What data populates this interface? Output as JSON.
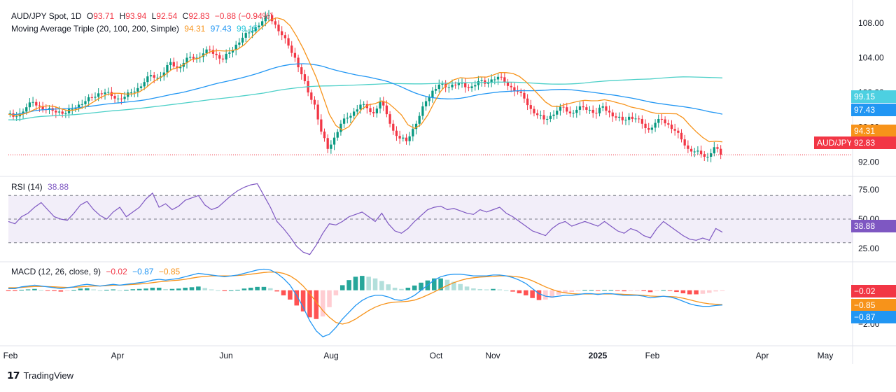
{
  "header": {
    "symbol": "AUD/JPY Spot, 1D",
    "ohlc": {
      "o_label": "O",
      "o": "93.71",
      "h_label": "H",
      "h": "93.94",
      "l_label": "L",
      "l": "92.54",
      "c_label": "C",
      "c": "92.83",
      "change": "−0.88 (−0.94%)"
    },
    "ma_title": "Moving Average Triple (20, 100, 200, Simple)",
    "ma_values": [
      "94.31",
      "97.43",
      "99.15"
    ]
  },
  "rsi_legend": {
    "title": "RSI (14)",
    "value": "38.88"
  },
  "macd_legend": {
    "title": "MACD (12, 26, close, 9)",
    "values": [
      "−0.02",
      "−0.87",
      "−0.85"
    ]
  },
  "price_axis": {
    "ticks": [
      "108.00",
      "104.00",
      "100.00",
      "96.00",
      "92.00"
    ]
  },
  "rsi_axis": {
    "ticks": [
      "75.00",
      "50.00",
      "25.00"
    ]
  },
  "macd_axis": {
    "ticks": [
      "−2.00"
    ]
  },
  "time_axis": {
    "labels": [
      "Feb",
      "Apr",
      "Jun",
      "Aug",
      "Oct",
      "Nov",
      "2025",
      "Feb",
      "Apr",
      "May"
    ]
  },
  "tags": {
    "ma200": "99.15",
    "ma100": "97.43",
    "ma20": "94.31",
    "symbol_tag": "AUD/JPY",
    "price": "92.83",
    "rsi": "38.88",
    "macd_hist": "−0.02",
    "macd_signal": "−0.85",
    "macd_line": "−0.87"
  },
  "colors": {
    "up": "#089981",
    "down": "#f23645",
    "ma20": "#f7931a",
    "ma100": "#2196f3",
    "ma200": "#4dd0c8",
    "rsi": "#7e57c2",
    "macd": "#2196f3",
    "signal": "#f7931a"
  },
  "footer": {
    "brand": "TradingView"
  },
  "chart_data": [
    {
      "type": "candlestick",
      "title": "AUD/JPY Spot, 1D",
      "ylim": [
        90.5,
        110
      ],
      "x_labels": [
        "Feb",
        "Apr",
        "Jun",
        "Aug",
        "Oct",
        "Nov",
        "2025",
        "Feb",
        "Apr",
        "May"
      ],
      "close_path": [
        97.5,
        97.2,
        97.6,
        98.3,
        98.9,
        98.4,
        98.0,
        97.9,
        97.8,
        97.6,
        98.1,
        98.6,
        99.0,
        99.4,
        99.9,
        100.0,
        99.6,
        99.3,
        99.5,
        100.0,
        100.5,
        101.2,
        102.0,
        101.7,
        102.3,
        103.5,
        102.8,
        103.4,
        104.1,
        104.0,
        104.5,
        104.9,
        104.3,
        103.8,
        104.6,
        105.5,
        106.3,
        106.9,
        107.5,
        108.2,
        108.9,
        107.8,
        106.6,
        105.4,
        104.0,
        102.1,
        100.0,
        98.6,
        95.5,
        93.5,
        94.8,
        96.4,
        97.1,
        97.8,
        98.6,
        98.2,
        97.6,
        99.0,
        97.5,
        95.6,
        94.7,
        94.4,
        95.8,
        97.3,
        99.0,
        100.2,
        100.9,
        100.6,
        100.9,
        101.1,
        100.6,
        100.7,
        101.3,
        101.0,
        101.5,
        101.8,
        101.2,
        100.6,
        100.1,
        99.3,
        98.1,
        97.4,
        96.9,
        97.3,
        97.9,
        98.3,
        97.6,
        98.0,
        98.3,
        98.0,
        97.6,
        98.4,
        97.7,
        97.1,
        96.8,
        97.2,
        97.0,
        96.4,
        95.7,
        96.5,
        96.9,
        96.3,
        95.6,
        94.6,
        93.5,
        93.2,
        92.9,
        92.6,
        93.7,
        92.83
      ],
      "ma20_last": 94.31,
      "ma100_last": 97.43,
      "ma200_last": 99.15,
      "last_close": 92.83
    },
    {
      "type": "line",
      "title": "RSI (14)",
      "ylim": [
        15,
        85
      ],
      "bands": [
        30,
        70
      ],
      "midline": 50,
      "values": [
        48,
        46,
        52,
        55,
        60,
        64,
        58,
        52,
        50,
        49,
        55,
        62,
        65,
        58,
        53,
        50,
        56,
        60,
        52,
        56,
        60,
        67,
        72,
        60,
        63,
        58,
        61,
        66,
        68,
        70,
        62,
        58,
        60,
        65,
        70,
        74,
        77,
        79,
        80,
        70,
        60,
        48,
        42,
        35,
        27,
        22,
        20,
        28,
        38,
        46,
        45,
        48,
        52,
        54,
        56,
        52,
        48,
        55,
        46,
        40,
        38,
        42,
        48,
        53,
        58,
        60,
        61,
        58,
        59,
        57,
        55,
        54,
        58,
        56,
        58,
        60,
        55,
        52,
        48,
        44,
        40,
        38,
        36,
        42,
        46,
        48,
        44,
        46,
        48,
        46,
        44,
        48,
        44,
        40,
        38,
        42,
        40,
        36,
        34,
        42,
        48,
        44,
        40,
        36,
        33,
        32,
        34,
        32,
        42,
        38.88
      ],
      "last": 38.88
    },
    {
      "type": "macd",
      "title": "MACD (12, 26, close, 9)",
      "ylim": [
        -3.2,
        1.6
      ],
      "macd": [
        0.1,
        0.1,
        0.2,
        0.25,
        0.3,
        0.25,
        0.2,
        0.15,
        0.1,
        0.15,
        0.2,
        0.3,
        0.35,
        0.3,
        0.25,
        0.3,
        0.35,
        0.3,
        0.35,
        0.4,
        0.45,
        0.5,
        0.6,
        0.65,
        0.6,
        0.65,
        0.7,
        0.8,
        0.9,
        1.0,
        0.95,
        0.9,
        0.85,
        0.8,
        0.85,
        0.9,
        1.0,
        1.1,
        1.2,
        1.25,
        1.2,
        1.0,
        0.7,
        0.3,
        -0.3,
        -1.0,
        -1.8,
        -2.4,
        -2.75,
        -2.6,
        -2.2,
        -1.7,
        -1.3,
        -0.9,
        -0.6,
        -0.4,
        -0.3,
        -0.3,
        -0.4,
        -0.55,
        -0.6,
        -0.5,
        -0.3,
        0.0,
        0.3,
        0.6,
        0.8,
        0.9,
        0.95,
        0.95,
        0.9,
        0.85,
        0.85,
        0.85,
        0.9,
        0.9,
        0.85,
        0.75,
        0.6,
        0.4,
        0.1,
        -0.2,
        -0.35,
        -0.4,
        -0.35,
        -0.3,
        -0.3,
        -0.25,
        -0.2,
        -0.2,
        -0.25,
        -0.2,
        -0.2,
        -0.25,
        -0.3,
        -0.3,
        -0.3,
        -0.35,
        -0.45,
        -0.4,
        -0.35,
        -0.4,
        -0.5,
        -0.65,
        -0.8,
        -0.9,
        -0.95,
        -0.95,
        -0.9,
        -0.87
      ],
      "signal": [
        0.15,
        0.15,
        0.17,
        0.2,
        0.22,
        0.23,
        0.22,
        0.2,
        0.18,
        0.17,
        0.18,
        0.2,
        0.23,
        0.25,
        0.25,
        0.27,
        0.3,
        0.3,
        0.32,
        0.34,
        0.37,
        0.4,
        0.45,
        0.5,
        0.53,
        0.57,
        0.6,
        0.65,
        0.72,
        0.78,
        0.82,
        0.85,
        0.85,
        0.85,
        0.85,
        0.87,
        0.9,
        0.95,
        1.0,
        1.05,
        1.08,
        1.07,
        1.0,
        0.85,
        0.6,
        0.25,
        -0.2,
        -0.7,
        -1.2,
        -1.6,
        -1.9,
        -2.0,
        -1.9,
        -1.7,
        -1.45,
        -1.2,
        -1.0,
        -0.85,
        -0.75,
        -0.7,
        -0.68,
        -0.65,
        -0.58,
        -0.45,
        -0.28,
        -0.1,
        0.1,
        0.28,
        0.45,
        0.58,
        0.68,
        0.74,
        0.78,
        0.8,
        0.82,
        0.85,
        0.85,
        0.83,
        0.78,
        0.7,
        0.56,
        0.38,
        0.2,
        0.05,
        -0.08,
        -0.15,
        -0.2,
        -0.22,
        -0.22,
        -0.22,
        -0.22,
        -0.22,
        -0.22,
        -0.22,
        -0.24,
        -0.26,
        -0.28,
        -0.3,
        -0.34,
        -0.36,
        -0.36,
        -0.37,
        -0.4,
        -0.47,
        -0.56,
        -0.66,
        -0.74,
        -0.8,
        -0.83,
        -0.85
      ],
      "macd_last": -0.87,
      "signal_last": -0.85,
      "hist_last": -0.02
    }
  ]
}
